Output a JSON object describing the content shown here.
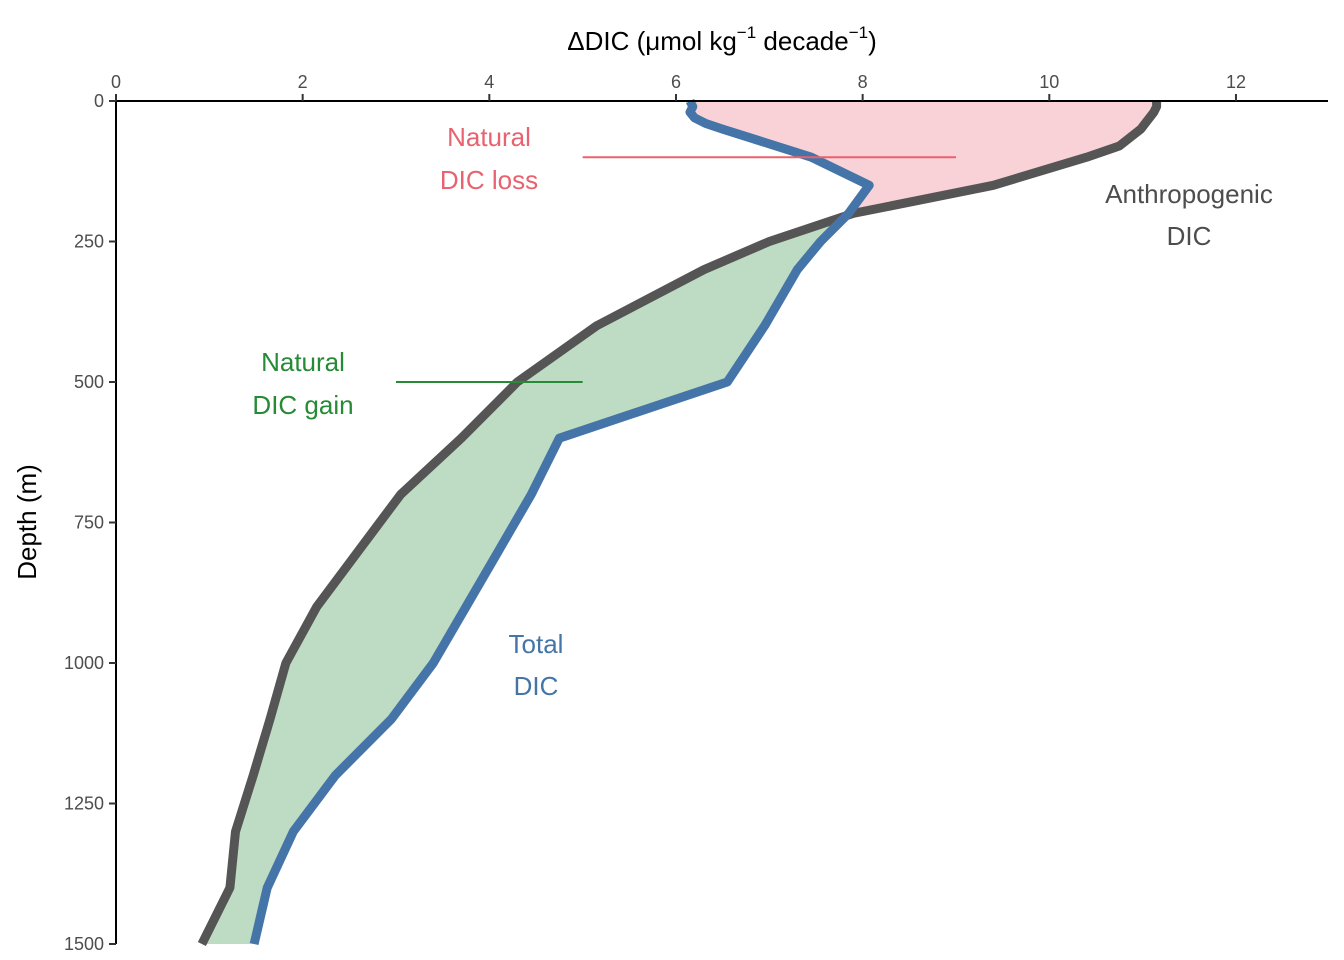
{
  "chart_data": {
    "type": "line",
    "xlabel": "ΔDIC (μmol kg",
    "xlabel_sup1": "−1",
    "xlabel_mid": " decade",
    "xlabel_sup2": "−1",
    "xlabel_end": ")",
    "ylabel": "Depth (m)",
    "xlim": [
      0,
      13
    ],
    "ylim": [
      1500,
      0
    ],
    "x_ticks": [
      "0",
      "2",
      "4",
      "6",
      "8",
      "10",
      "12"
    ],
    "y_ticks": [
      "0",
      "250",
      "500",
      "750",
      "1000",
      "1250",
      "1500"
    ],
    "x_axis_position": "top",
    "y_reversed": true,
    "grid": false,
    "series": [
      {
        "name": "Anthropogenic DIC",
        "color": "#555555",
        "depth": [
          0,
          10,
          20,
          50,
          80,
          100,
          150,
          200,
          250,
          300,
          400,
          500,
          600,
          700,
          800,
          900,
          1000,
          1100,
          1200,
          1300,
          1400,
          1500
        ],
        "values": [
          11.15,
          11.15,
          11.12,
          10.98,
          10.75,
          10.4,
          9.4,
          7.9,
          7.0,
          6.3,
          5.15,
          4.3,
          3.7,
          3.05,
          2.6,
          2.15,
          1.82,
          1.65,
          1.47,
          1.28,
          1.22,
          0.92
        ]
      },
      {
        "name": "Total DIC",
        "color": "#4575a8",
        "depth": [
          0,
          10,
          20,
          30,
          40,
          50,
          100,
          150,
          200,
          250,
          300,
          400,
          500,
          600,
          700,
          800,
          900,
          1000,
          1100,
          1200,
          1300,
          1400,
          1500
        ],
        "values": [
          6.15,
          6.18,
          6.15,
          6.2,
          6.32,
          6.5,
          7.45,
          8.07,
          7.85,
          7.55,
          7.3,
          6.95,
          6.55,
          4.75,
          4.45,
          4.1,
          3.75,
          3.4,
          2.95,
          2.35,
          1.9,
          1.62,
          1.48
        ]
      }
    ],
    "fills": [
      {
        "name": "Natural DIC loss",
        "color": "#f9d2d7"
      },
      {
        "name": "Natural DIC gain",
        "color": "#bedcc4"
      }
    ],
    "annotations": [
      {
        "id": "loss",
        "lines": [
          "Natural",
          "DIC loss"
        ],
        "color": "#e8626f",
        "depth": 100,
        "segment": [
          5.0,
          9.0
        ]
      },
      {
        "id": "gain",
        "lines": [
          "Natural",
          "DIC gain"
        ],
        "color": "#268a36",
        "depth": 500,
        "segment": [
          3.0,
          5.0
        ]
      },
      {
        "id": "anthro",
        "lines": [
          "Anthropogenic",
          "DIC"
        ],
        "color": "#4d4d4d"
      },
      {
        "id": "total",
        "lines": [
          "Total",
          "DIC"
        ],
        "color": "#4575a8"
      }
    ]
  }
}
